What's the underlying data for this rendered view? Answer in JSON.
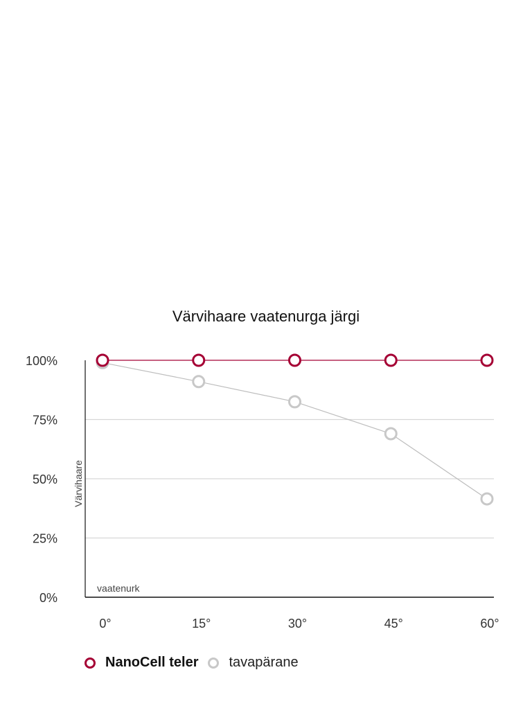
{
  "chart_data": {
    "type": "line",
    "title": "Värvihaare vaatenurga järgi",
    "xlabel": "vaatenurk",
    "ylabel": "Värvihaare",
    "categories": [
      "0°",
      "15°",
      "30°",
      "45°",
      "60°"
    ],
    "x": [
      0,
      15,
      30,
      45,
      60
    ],
    "yticks": [
      "0%",
      "25%",
      "50%",
      "75%",
      "100%"
    ],
    "ylim": [
      0,
      100
    ],
    "grid": true,
    "legend_position": "bottom-left",
    "series": [
      {
        "name": "NanoCell teler",
        "values": [
          100,
          100,
          100,
          100,
          100
        ],
        "color": "#a50034"
      },
      {
        "name": "tavapärane",
        "values": [
          99,
          91,
          82.5,
          69,
          41.5
        ],
        "color": "#c0c0c0"
      }
    ]
  }
}
